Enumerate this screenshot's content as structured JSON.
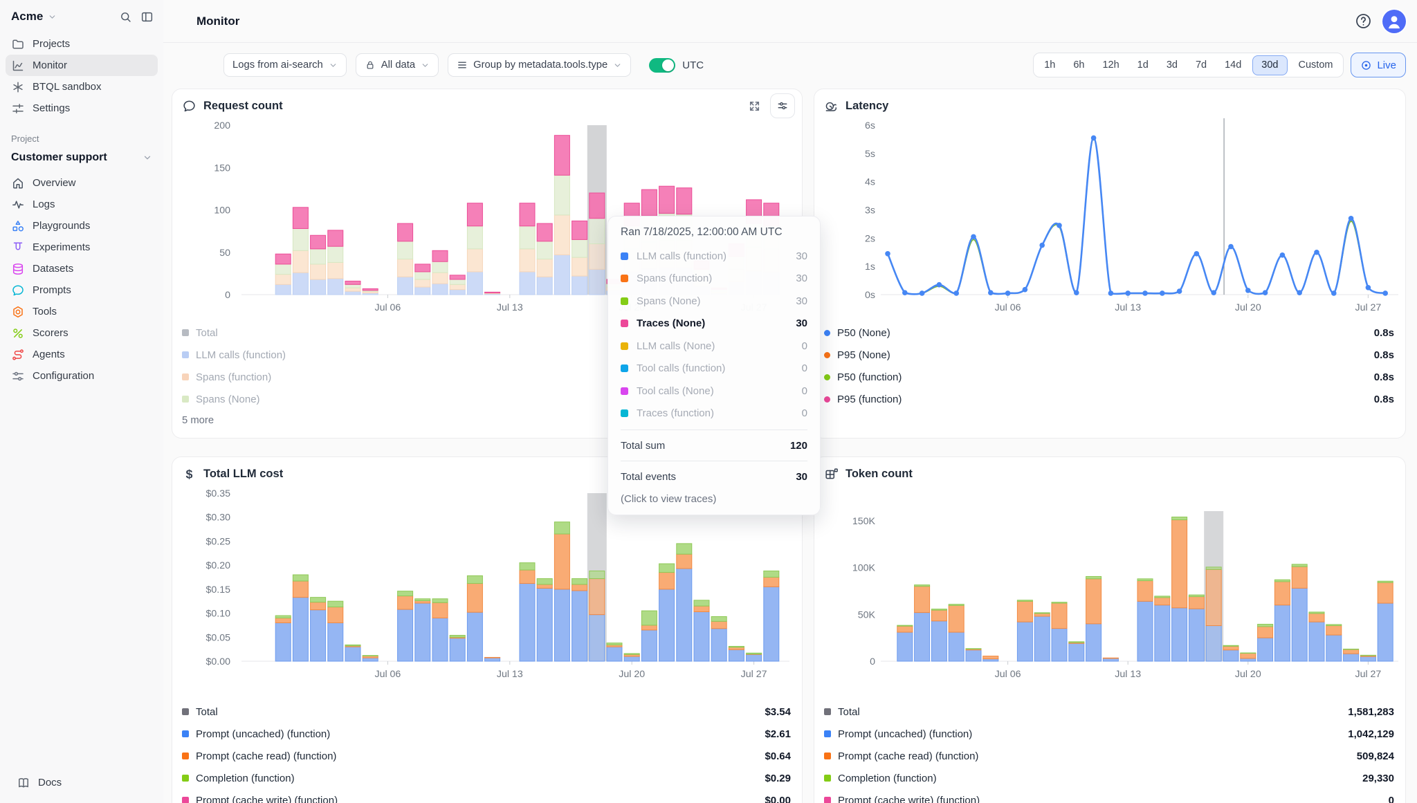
{
  "app": {
    "workspace": "Acme",
    "page_title": "Monitor"
  },
  "sidebar": {
    "top_items": [
      {
        "label": "Projects",
        "icon": "folder",
        "active": false
      },
      {
        "label": "Monitor",
        "icon": "monitor-chart",
        "active": true
      },
      {
        "label": "BTQL sandbox",
        "icon": "asterisk",
        "active": false
      },
      {
        "label": "Settings",
        "icon": "sliders",
        "active": false
      }
    ],
    "section_label": "Project",
    "project_name": "Customer support",
    "project_items": [
      {
        "label": "Overview",
        "icon": "home",
        "color": "#4b5563"
      },
      {
        "label": "Logs",
        "icon": "pulse",
        "color": "#4b5563"
      },
      {
        "label": "Playgrounds",
        "icon": "shapes",
        "color": "#3b82f6"
      },
      {
        "label": "Experiments",
        "icon": "experiments",
        "color": "#8b5cf6"
      },
      {
        "label": "Datasets",
        "icon": "database",
        "color": "#d946ef"
      },
      {
        "label": "Prompts",
        "icon": "chat-bubble",
        "color": "#06b6d4"
      },
      {
        "label": "Tools",
        "icon": "hex-nut",
        "color": "#f97316"
      },
      {
        "label": "Scorers",
        "icon": "percent",
        "color": "#84cc16"
      },
      {
        "label": "Agents",
        "icon": "agents",
        "color": "#ef4444"
      },
      {
        "label": "Configuration",
        "icon": "config",
        "color": "#6b7280"
      }
    ],
    "docs_label": "Docs"
  },
  "toolbar": {
    "filters": [
      {
        "label": "Logs from ai-search",
        "icon": null
      },
      {
        "label": "All data",
        "icon": "lock"
      },
      {
        "label": "Group by metadata.tools.type",
        "icon": "rows"
      }
    ],
    "utc_label": "UTC",
    "utc_on": true,
    "ranges": [
      "1h",
      "6h",
      "12h",
      "1d",
      "3d",
      "7d",
      "14d",
      "30d",
      "Custom"
    ],
    "selected_range": "30d",
    "live_label": "Live",
    "accent_color": "#2563eb",
    "toggle_color": "#10b981"
  },
  "tooltip": {
    "title": "Ran 7/18/2025, 12:00:00 AM UTC",
    "rows": [
      {
        "label": "LLM calls (function)",
        "value": "30",
        "color": "#3b82f6",
        "emphasis": false
      },
      {
        "label": "Spans (function)",
        "value": "30",
        "color": "#f97316",
        "emphasis": false
      },
      {
        "label": "Spans (None)",
        "value": "30",
        "color": "#84cc16",
        "emphasis": false
      },
      {
        "label": "Traces (None)",
        "value": "30",
        "color": "#ec4899",
        "emphasis": true
      },
      {
        "label": "LLM calls (None)",
        "value": "0",
        "color": "#eab308",
        "emphasis": false
      },
      {
        "label": "Tool calls (function)",
        "value": "0",
        "color": "#0ea5e9",
        "emphasis": false
      },
      {
        "label": "Tool calls (None)",
        "value": "0",
        "color": "#d946ef",
        "emphasis": false
      },
      {
        "label": "Traces (function)",
        "value": "0",
        "color": "#06b6d4",
        "emphasis": false
      }
    ],
    "total_sum_label": "Total sum",
    "total_sum_value": "120",
    "total_events_label": "Total events",
    "total_events_value": "30",
    "hint": "(Click to view traces)"
  },
  "charts": {
    "request": {
      "type": "bar-stacked",
      "title": "Request count",
      "icon": "chat-bubble",
      "y_ticks": [
        {
          "label": "200",
          "v": 200
        },
        {
          "label": "150",
          "v": 150
        },
        {
          "label": "100",
          "v": 100
        },
        {
          "label": "50",
          "v": 50
        },
        {
          "label": "0",
          "v": 0
        }
      ],
      "x_ticks": [
        {
          "label": "Jul 06",
          "day": 8
        },
        {
          "label": "Jul 13",
          "day": 15
        },
        {
          "label": "Jul 20",
          "day": 22
        },
        {
          "label": "Jul 27",
          "day": 29
        }
      ],
      "series": [
        "LLM calls (function)",
        "Spans (function)",
        "Spans (None)",
        "Traces (None)"
      ],
      "values": [
        [
          0,
          0,
          0,
          0
        ],
        [
          12,
          12,
          12,
          12
        ],
        [
          26,
          26,
          26,
          25
        ],
        [
          18,
          18,
          18,
          16
        ],
        [
          19,
          19,
          19,
          19
        ],
        [
          4,
          4,
          4,
          4
        ],
        [
          2,
          2,
          1,
          2
        ],
        [
          0,
          0,
          0,
          0
        ],
        [
          21,
          21,
          21,
          21
        ],
        [
          9,
          9,
          9,
          9
        ],
        [
          13,
          13,
          13,
          13
        ],
        [
          6,
          6,
          6,
          5
        ],
        [
          27,
          27,
          27,
          27
        ],
        [
          1,
          1,
          0,
          1
        ],
        [
          0,
          0,
          0,
          0
        ],
        [
          27,
          27,
          27,
          27
        ],
        [
          21,
          21,
          21,
          21
        ],
        [
          47,
          47,
          47,
          47
        ],
        [
          22,
          22,
          21,
          22
        ],
        [
          30,
          30,
          30,
          30
        ],
        [
          5,
          4,
          4,
          5
        ],
        [
          27,
          27,
          27,
          27
        ],
        [
          31,
          31,
          31,
          31
        ],
        [
          32,
          32,
          32,
          32
        ],
        [
          32,
          32,
          31,
          31
        ],
        [
          10,
          10,
          10,
          10
        ],
        [
          2,
          2,
          2,
          2
        ],
        [
          15,
          15,
          15,
          15
        ],
        [
          28,
          28,
          28,
          28
        ],
        [
          27,
          27,
          27,
          27
        ]
      ],
      "highlight_day": 20,
      "legend": [
        {
          "label": "Total",
          "color": "#b7bbc2"
        },
        {
          "label": "LLM calls (function)",
          "color": "#b9cdf4"
        },
        {
          "label": "Spans (function)",
          "color": "#f8d4ba"
        },
        {
          "label": "Spans (None)",
          "color": "#d9e9c4"
        }
      ],
      "more_label": "5 more"
    },
    "latency": {
      "type": "line",
      "title": "Latency",
      "icon": "snail",
      "y_ticks": [
        {
          "label": "6s",
          "v": 6
        },
        {
          "label": "5s",
          "v": 5
        },
        {
          "label": "4s",
          "v": 4
        },
        {
          "label": "3s",
          "v": 3
        },
        {
          "label": "2s",
          "v": 2
        },
        {
          "label": "1s",
          "v": 1
        },
        {
          "label": "0s",
          "v": 0
        }
      ],
      "x_ticks": [
        {
          "label": "Jul 06",
          "day": 8
        },
        {
          "label": "Jul 13",
          "day": 15
        },
        {
          "label": "Jul 20",
          "day": 22
        },
        {
          "label": "Jul 27",
          "day": 29
        }
      ],
      "crosshair_day": 20.6,
      "series": [
        {
          "name": "P50 (function)",
          "color": "#7cb83a",
          "values": [
            1.45,
            0.07,
            0.05,
            0.3,
            0.05,
            1.95,
            0.07,
            0.05,
            0.18,
            1.75,
            2.4,
            0.07,
            5.55,
            0.05,
            0.05,
            0.05,
            0.05,
            0.12,
            1.45,
            0.07,
            1.7,
            0.15,
            0.07,
            1.4,
            0.07,
            1.5,
            0.05,
            2.6,
            0.25,
            0.05
          ]
        },
        {
          "name": "P50 (None)",
          "color": "#4687f4",
          "values": [
            1.45,
            0.07,
            0.05,
            0.35,
            0.05,
            2.05,
            0.07,
            0.05,
            0.18,
            1.75,
            2.45,
            0.07,
            5.55,
            0.05,
            0.05,
            0.05,
            0.05,
            0.12,
            1.45,
            0.07,
            1.7,
            0.15,
            0.07,
            1.4,
            0.07,
            1.5,
            0.05,
            2.7,
            0.25,
            0.05
          ]
        }
      ],
      "legend": [
        {
          "label": "P50 (None)",
          "value": "0.8s",
          "color": "#3b82f6"
        },
        {
          "label": "P95 (None)",
          "value": "0.8s",
          "color": "#f97316"
        },
        {
          "label": "P50 (function)",
          "value": "0.8s",
          "color": "#84cc16"
        },
        {
          "label": "P95 (function)",
          "value": "0.8s",
          "color": "#ec4899"
        }
      ]
    },
    "cost": {
      "type": "bar-stacked",
      "title": "Total LLM cost",
      "icon": "dollar",
      "y_ticks": [
        {
          "label": "$0.35",
          "v": 0.35
        },
        {
          "label": "$0.30",
          "v": 0.3
        },
        {
          "label": "$0.25",
          "v": 0.25
        },
        {
          "label": "$0.20",
          "v": 0.2
        },
        {
          "label": "$0.15",
          "v": 0.15
        },
        {
          "label": "$0.10",
          "v": 0.1
        },
        {
          "label": "$0.05",
          "v": 0.05
        },
        {
          "label": "$0.00",
          "v": 0
        }
      ],
      "x_ticks": [
        {
          "label": "Jul 06",
          "day": 8
        },
        {
          "label": "Jul 13",
          "day": 15
        },
        {
          "label": "Jul 20",
          "day": 22
        },
        {
          "label": "Jul 27",
          "day": 29
        }
      ],
      "series": [
        "Prompt (uncached) (function)",
        "Prompt (cache read) (function)",
        "Completion (function)"
      ],
      "values": [
        [
          0,
          0,
          0
        ],
        [
          0.08,
          0.01,
          0.005
        ],
        [
          0.133,
          0.034,
          0.013
        ],
        [
          0.107,
          0.016,
          0.01
        ],
        [
          0.08,
          0.033,
          0.012
        ],
        [
          0.03,
          0.002,
          0.002
        ],
        [
          0.007,
          0.004,
          0.001
        ],
        [
          0,
          0,
          0
        ],
        [
          0.108,
          0.028,
          0.01
        ],
        [
          0.121,
          0.005,
          0.004
        ],
        [
          0.09,
          0.032,
          0.008
        ],
        [
          0.048,
          0.002,
          0.004
        ],
        [
          0.102,
          0.06,
          0.016
        ],
        [
          0.007,
          0.001,
          0
        ],
        [
          0,
          0,
          0
        ],
        [
          0.162,
          0.028,
          0.015
        ],
        [
          0.152,
          0.008,
          0.012
        ],
        [
          0.15,
          0.115,
          0.025
        ],
        [
          0.147,
          0.013,
          0.012
        ],
        [
          0.097,
          0.075,
          0.016
        ],
        [
          0.03,
          0.004,
          0.004
        ],
        [
          0.01,
          0.004,
          0.002
        ],
        [
          0.065,
          0.01,
          0.03
        ],
        [
          0.15,
          0.035,
          0.018
        ],
        [
          0.193,
          0.03,
          0.022
        ],
        [
          0.103,
          0.012,
          0.012
        ],
        [
          0.068,
          0.015,
          0.01
        ],
        [
          0.024,
          0.005,
          0.002
        ],
        [
          0.014,
          0.001,
          0.002
        ],
        [
          0.155,
          0.02,
          0.013
        ]
      ],
      "highlight_day": 20,
      "legend": [
        {
          "label": "Total",
          "value": "$3.54",
          "color": "#71717a"
        },
        {
          "label": "Prompt (uncached) (function)",
          "value": "$2.61",
          "color": "#3b82f6"
        },
        {
          "label": "Prompt (cache read) (function)",
          "value": "$0.64",
          "color": "#f97316"
        },
        {
          "label": "Completion (function)",
          "value": "$0.29",
          "color": "#84cc16"
        },
        {
          "label": "Prompt (cache write) (function)",
          "value": "$0.00",
          "color": "#ec4899"
        }
      ]
    },
    "token": {
      "type": "bar-stacked",
      "title": "Token count",
      "icon": "token-grid",
      "y_ticks": [
        {
          "label": "150K",
          "v": 150
        },
        {
          "label": "100K",
          "v": 100
        },
        {
          "label": "50K",
          "v": 50
        },
        {
          "label": "0",
          "v": 0
        }
      ],
      "x_ticks": [
        {
          "label": "Jul 06",
          "day": 8
        },
        {
          "label": "Jul 13",
          "day": 15
        },
        {
          "label": "Jul 20",
          "day": 22
        },
        {
          "label": "Jul 27",
          "day": 29
        }
      ],
      "series": [
        "Prompt (uncached) (function)",
        "Prompt (cache read) (function)",
        "Completion (function)"
      ],
      "values": [
        [
          0,
          0,
          0
        ],
        [
          31,
          6.5,
          0.8
        ],
        [
          52,
          28,
          1.5
        ],
        [
          43,
          11.5,
          1.2
        ],
        [
          31,
          28.5,
          1.3
        ],
        [
          12,
          1,
          0.5
        ],
        [
          2.5,
          3,
          0.2
        ],
        [
          0,
          0,
          0
        ],
        [
          42,
          22,
          1.2
        ],
        [
          48,
          3,
          0.8
        ],
        [
          35,
          27,
          1
        ],
        [
          19,
          1,
          0.8
        ],
        [
          40,
          48,
          2.5
        ],
        [
          3,
          0.5,
          0.2
        ],
        [
          0,
          0,
          0
        ],
        [
          64,
          22,
          2
        ],
        [
          60,
          8,
          1.5
        ],
        [
          57,
          94,
          3
        ],
        [
          56,
          13,
          1.8
        ],
        [
          38,
          60,
          2.5
        ],
        [
          12,
          4,
          0.8
        ],
        [
          3,
          5.5,
          0.4
        ],
        [
          25,
          12,
          2.5
        ],
        [
          60,
          25,
          2
        ],
        [
          78,
          23,
          2.5
        ],
        [
          42,
          9,
          1.5
        ],
        [
          28,
          10,
          1.2
        ],
        [
          8,
          4.5,
          0.5
        ],
        [
          5,
          1,
          0.4
        ],
        [
          62,
          22,
          1.5
        ]
      ],
      "highlight_day": 20,
      "legend": [
        {
          "label": "Total",
          "value": "1,581,283",
          "color": "#71717a"
        },
        {
          "label": "Prompt (uncached) (function)",
          "value": "1,042,129",
          "color": "#3b82f6"
        },
        {
          "label": "Prompt (cache read) (function)",
          "value": "509,824",
          "color": "#f97316"
        },
        {
          "label": "Completion (function)",
          "value": "29,330",
          "color": "#84cc16"
        },
        {
          "label": "Prompt (cache write) (function)",
          "value": "0",
          "color": "#ec4899"
        }
      ]
    }
  }
}
